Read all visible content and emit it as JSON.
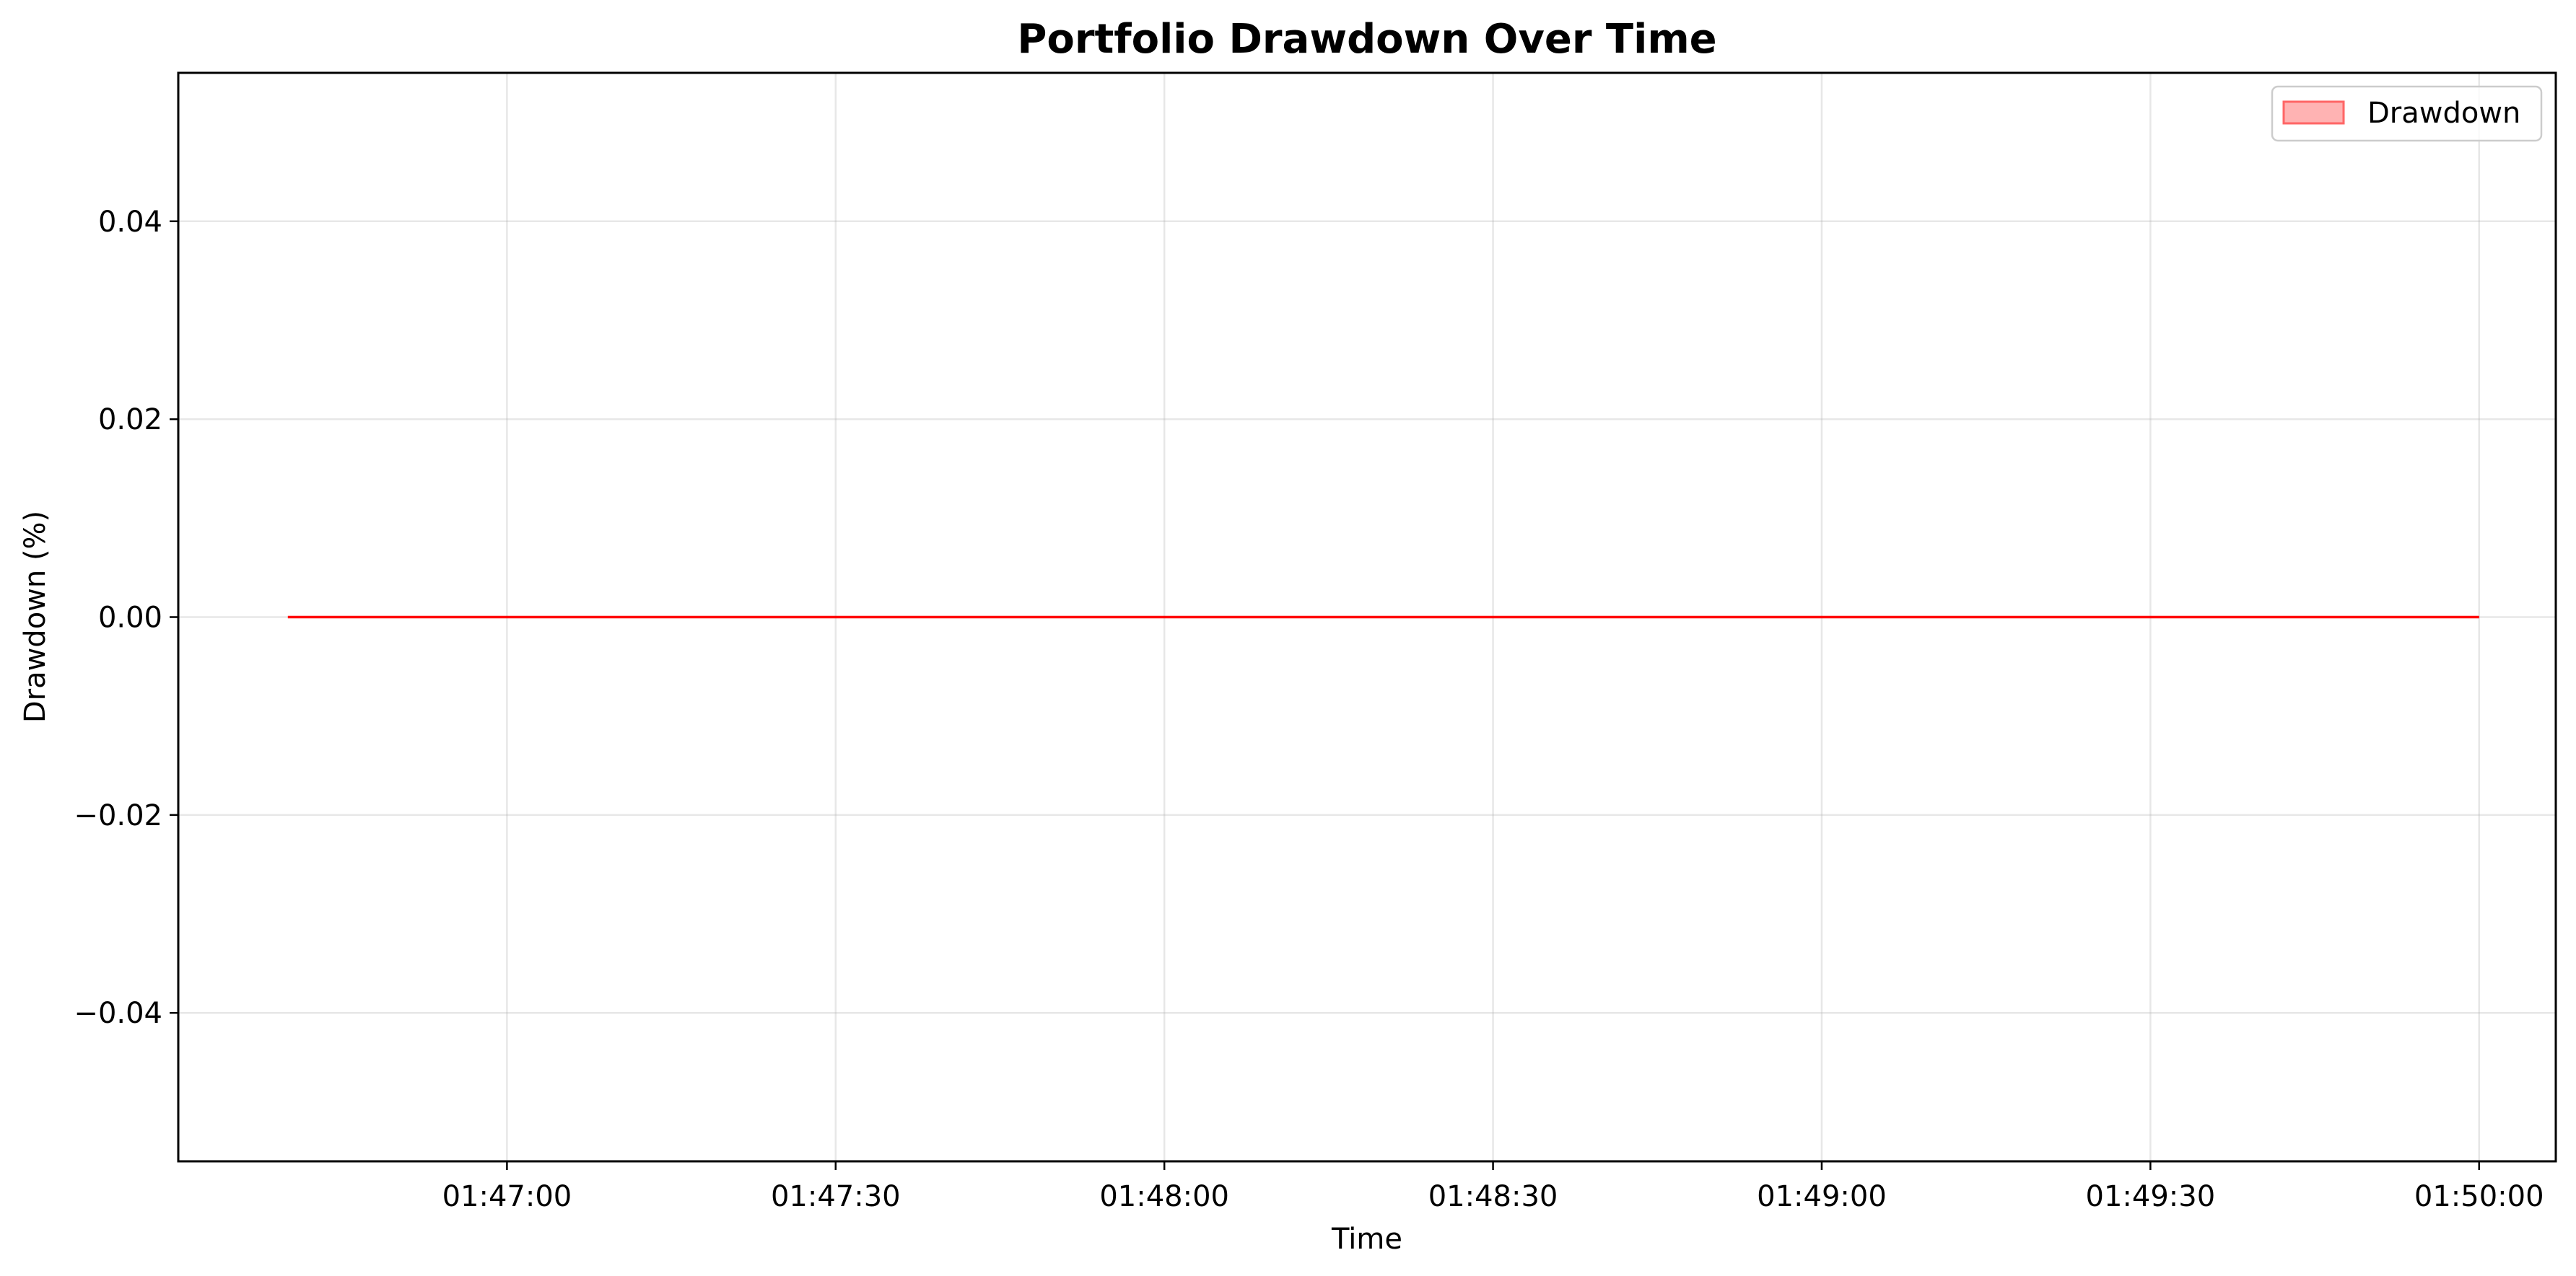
{
  "chart_data": {
    "type": "area",
    "title": "Portfolio Drawdown Over Time",
    "xlabel": "Time",
    "ylabel": "Drawdown (%)",
    "x_ticks": [
      "01:47:00",
      "01:47:30",
      "01:48:00",
      "01:48:30",
      "01:49:00",
      "01:49:30",
      "01:50:00"
    ],
    "x_tick_seconds": [
      0,
      30,
      60,
      90,
      120,
      150,
      180
    ],
    "xlim_seconds": [
      -30,
      187
    ],
    "y_ticks": [
      0.04,
      0.02,
      0.0,
      -0.02,
      -0.04
    ],
    "y_tick_labels": [
      "0.04",
      "0.02",
      "0.00",
      "−0.02",
      "−0.04"
    ],
    "ylim": [
      -0.055,
      0.055
    ],
    "grid": true,
    "legend_position": "top-right",
    "series": [
      {
        "name": "Drawdown",
        "x_seconds": [
          -20,
          180
        ],
        "values": [
          0,
          0
        ],
        "line_color": "#ff0000",
        "fill_color": "#ff9999"
      }
    ]
  }
}
